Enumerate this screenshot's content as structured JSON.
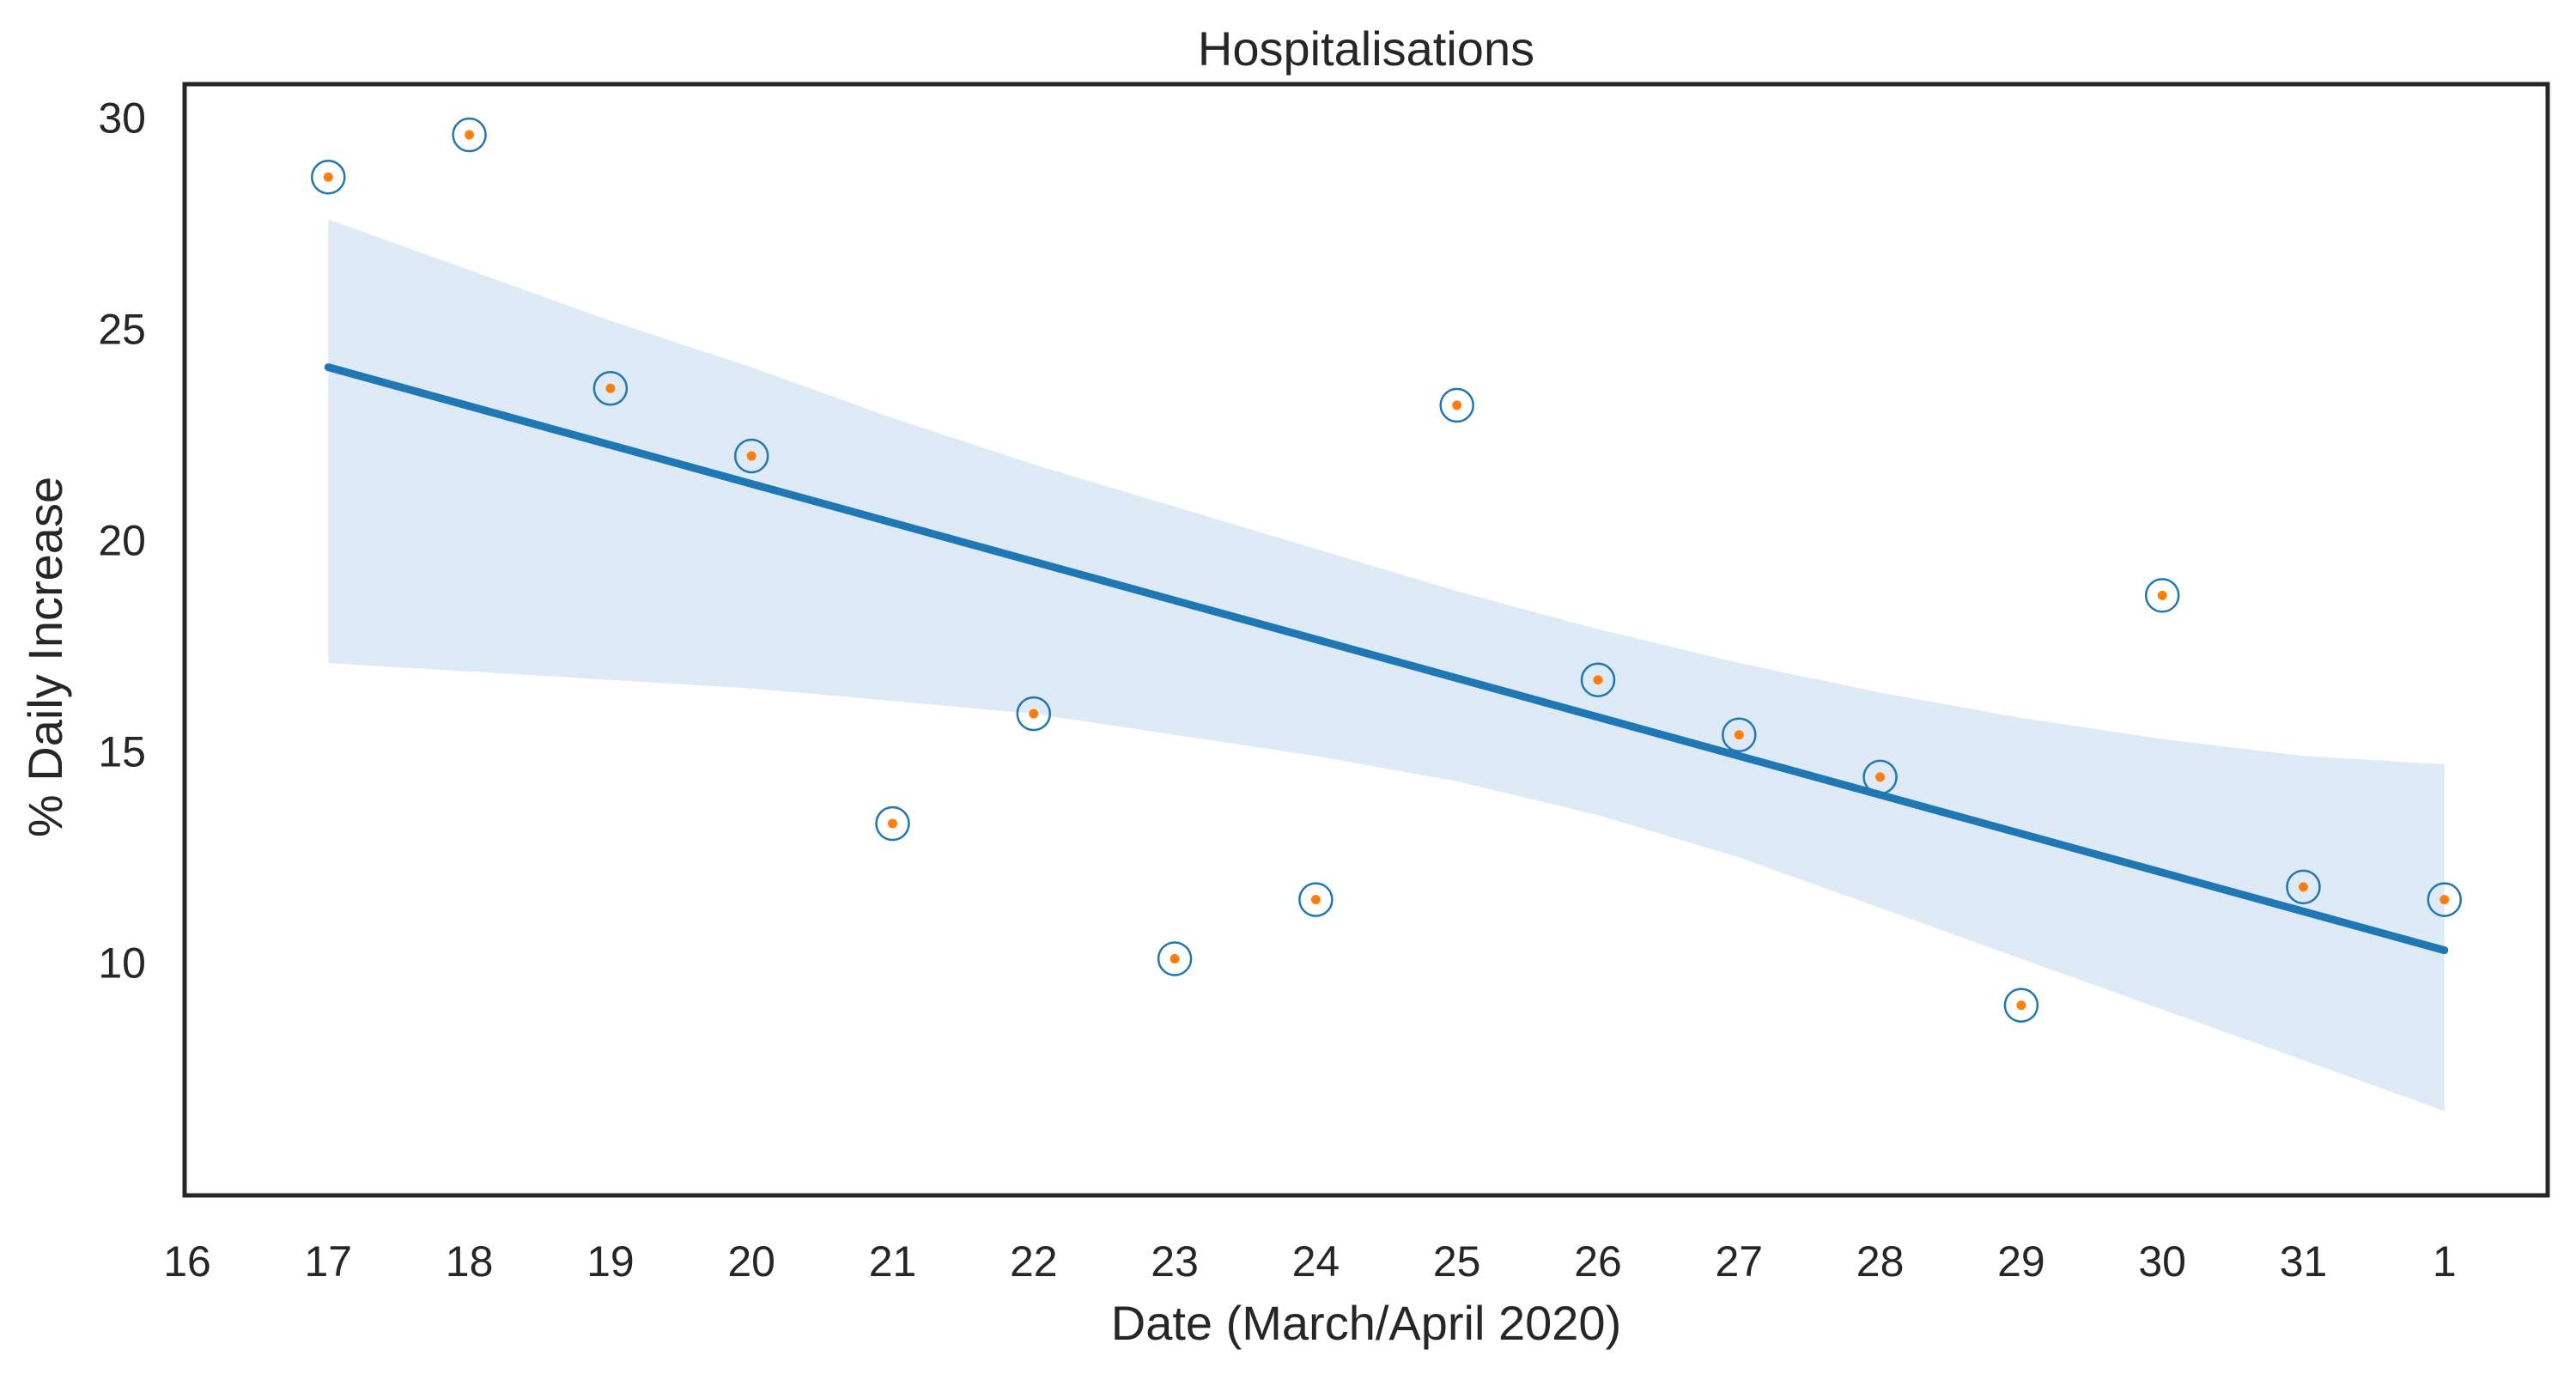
{
  "chart_data": {
    "type": "scatter",
    "title": "Hospitalisations",
    "xlabel": "Date (March/April 2020)",
    "ylabel": "% Daily Increase",
    "x_tick_labels": [
      "16",
      "17",
      "18",
      "19",
      "20",
      "21",
      "22",
      "23",
      "24",
      "25",
      "26",
      "27",
      "28",
      "29",
      "30",
      "31",
      "1"
    ],
    "x": [
      "2020-03-17",
      "2020-03-18",
      "2020-03-19",
      "2020-03-20",
      "2020-03-21",
      "2020-03-22",
      "2020-03-23",
      "2020-03-24",
      "2020-03-25",
      "2020-03-26",
      "2020-03-27",
      "2020-03-28",
      "2020-03-29",
      "2020-03-30",
      "2020-03-31",
      "2020-04-01"
    ],
    "y": [
      28.6,
      29.6,
      23.6,
      22.0,
      13.3,
      15.9,
      10.1,
      11.5,
      23.2,
      16.7,
      15.4,
      14.4,
      9.0,
      18.7,
      11.8,
      11.5
    ],
    "y_ticks": [
      10,
      15,
      20,
      25,
      30
    ],
    "xlim": [
      "2020-03-16",
      "2020-04-01"
    ],
    "ylim": [
      4.5,
      30.8
    ],
    "regression": {
      "x": [
        "2020-03-17",
        "2020-04-01"
      ],
      "y": [
        24.1,
        10.3
      ]
    },
    "confidence_band": {
      "x": [
        "2020-03-17",
        "2020-03-18",
        "2020-03-19",
        "2020-03-20",
        "2020-03-21",
        "2020-03-22",
        "2020-03-23",
        "2020-03-24",
        "2020-03-25",
        "2020-03-26",
        "2020-03-27",
        "2020-03-28",
        "2020-03-29",
        "2020-03-30",
        "2020-03-31",
        "2020-04-01"
      ],
      "upper": [
        27.6,
        26.4,
        25.2,
        24.1,
        22.9,
        21.8,
        20.8,
        19.8,
        18.8,
        17.9,
        17.1,
        16.4,
        15.8,
        15.3,
        14.9,
        14.7
      ],
      "lower": [
        17.1,
        16.9,
        16.7,
        16.5,
        16.2,
        15.9,
        15.4,
        14.9,
        14.3,
        13.5,
        12.5,
        11.3,
        10.1,
        8.9,
        7.7,
        6.5
      ]
    },
    "grid": false,
    "colors": {
      "line": "#1f77b4",
      "band": "#deeaf5",
      "marker_ring": "#1f77b4",
      "marker_dot": "#ff7f0e",
      "frame": "#262626"
    }
  }
}
